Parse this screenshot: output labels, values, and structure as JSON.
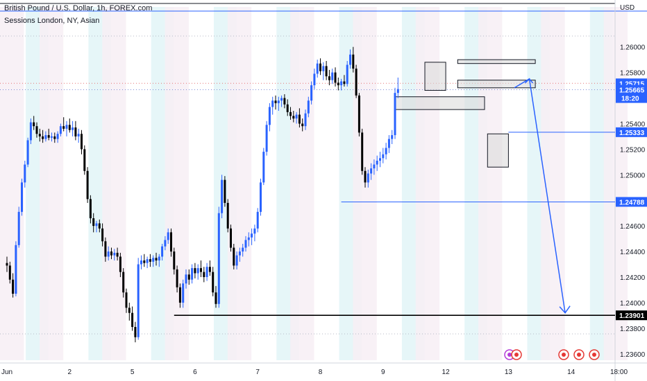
{
  "header": {
    "title": "British Pound / U.S. Dollar, 1h, FOREX.com",
    "indicator": "Sessions London, NY, Asian",
    "currency": "USD"
  },
  "chart_data": {
    "type": "candlestick",
    "symbol": "GBPUSD",
    "timeframe": "1h",
    "ylim": [
      1.2355,
      1.2615
    ],
    "y_ticks": [
      1.236,
      1.238,
      1.24,
      1.242,
      1.244,
      1.246,
      1.248,
      1.25,
      1.252,
      1.254,
      1.256,
      1.258,
      1.26
    ],
    "x_ticks": [
      {
        "label": "Jun",
        "idx": 0
      },
      {
        "label": "2",
        "idx": 21
      },
      {
        "label": "5",
        "idx": 42
      },
      {
        "label": "6",
        "idx": 63
      },
      {
        "label": "7",
        "idx": 84
      },
      {
        "label": "8",
        "idx": 105
      },
      {
        "label": "9",
        "idx": 126
      },
      {
        "label": "12",
        "idx": 147
      },
      {
        "label": "13",
        "idx": 168
      },
      {
        "label": "14",
        "idx": 189
      },
      {
        "label": "18:00",
        "idx": 205
      }
    ],
    "price_labels": [
      {
        "value": "1.25715",
        "price": 1.25715,
        "color": "#2962ff"
      },
      {
        "value": "1.25665",
        "price": 1.25665,
        "color": "#2962ff",
        "extra": "18:20"
      },
      {
        "value": "1.25333",
        "price": 1.25333,
        "color": "#2962ff"
      },
      {
        "value": "1.24788",
        "price": 1.24788,
        "color": "#2962ff"
      },
      {
        "value": "1.23901",
        "price": 1.23901,
        "color": "#000000"
      }
    ],
    "horizontal_lines": [
      {
        "price": 1.25333,
        "from_idx": 168,
        "color": "#2962ff"
      },
      {
        "price": 1.24788,
        "from_idx": 112,
        "color": "#2962ff"
      },
      {
        "price": 1.23901,
        "from_idx": 56,
        "color": "#000000"
      }
    ],
    "zones": [
      {
        "x0": 140,
        "x1": 147,
        "y0": 1.2588,
        "y1": 1.2566
      },
      {
        "x0": 130,
        "x1": 160,
        "y0": 1.2561,
        "y1": 1.2551
      },
      {
        "x0": 151,
        "x1": 177,
        "y0": 1.259,
        "y1": 1.2587
      },
      {
        "x0": 151,
        "x1": 177,
        "y0": 1.2574,
        "y1": 1.2568
      },
      {
        "x0": 161,
        "x1": 168,
        "y0": 1.2532,
        "y1": 1.2506
      }
    ],
    "projection_arrow": [
      {
        "idx": 170,
        "price": 1.2568
      },
      {
        "idx": 175,
        "price": 1.2575
      },
      {
        "idx": 187,
        "price": 1.2392
      }
    ],
    "colors": {
      "up": "#2962ff",
      "down": "#000000",
      "london": "#e6f6f8",
      "ny": "#f7eef5",
      "grid_dotted": "#b4b9c6",
      "red_dotted": "#e57373",
      "zone_fill": "#d8d8d8"
    },
    "candles": [
      [
        1.2431,
        1.2436,
        1.2424,
        1.2429
      ],
      [
        1.2429,
        1.2432,
        1.2415,
        1.2418
      ],
      [
        1.2418,
        1.2423,
        1.2404,
        1.2407
      ],
      [
        1.2407,
        1.2448,
        1.2405,
        1.2445
      ],
      [
        1.2445,
        1.2475,
        1.2443,
        1.2471
      ],
      [
        1.2471,
        1.2497,
        1.2468,
        1.2494
      ],
      [
        1.2494,
        1.2511,
        1.249,
        1.2508
      ],
      [
        1.2508,
        1.2529,
        1.2506,
        1.2527
      ],
      [
        1.2527,
        1.2544,
        1.2524,
        1.2541
      ],
      [
        1.2541,
        1.2546,
        1.2535,
        1.2538
      ],
      [
        1.2538,
        1.2541,
        1.2529,
        1.2532
      ],
      [
        1.2532,
        1.2536,
        1.2526,
        1.253
      ],
      [
        1.253,
        1.2535,
        1.2525,
        1.2528
      ],
      [
        1.2528,
        1.2534,
        1.2526,
        1.2531
      ],
      [
        1.2531,
        1.2536,
        1.2527,
        1.2529
      ],
      [
        1.2529,
        1.2533,
        1.2526,
        1.253
      ],
      [
        1.253,
        1.2533,
        1.2525,
        1.2528
      ],
      [
        1.2528,
        1.2534,
        1.2525,
        1.2532
      ],
      [
        1.2532,
        1.254,
        1.253,
        1.2538
      ],
      [
        1.2538,
        1.2545,
        1.2534,
        1.2536
      ],
      [
        1.2536,
        1.2542,
        1.253,
        1.2539
      ],
      [
        1.2539,
        1.2544,
        1.2533,
        1.2535
      ],
      [
        1.2535,
        1.2542,
        1.253,
        1.2537
      ],
      [
        1.2537,
        1.2542,
        1.2527,
        1.253
      ],
      [
        1.253,
        1.2536,
        1.2525,
        1.2532
      ],
      [
        1.2532,
        1.2535,
        1.2516,
        1.252
      ],
      [
        1.252,
        1.2523,
        1.25,
        1.2503
      ],
      [
        1.2503,
        1.2506,
        1.2478,
        1.2481
      ],
      [
        1.2481,
        1.2484,
        1.2462,
        1.2466
      ],
      [
        1.2466,
        1.247,
        1.2455,
        1.246
      ],
      [
        1.246,
        1.2464,
        1.2455,
        1.2462
      ],
      [
        1.2462,
        1.2465,
        1.2455,
        1.2458
      ],
      [
        1.2458,
        1.2462,
        1.2444,
        1.2448
      ],
      [
        1.2448,
        1.2451,
        1.2432,
        1.2436
      ],
      [
        1.2436,
        1.2444,
        1.2433,
        1.244
      ],
      [
        1.244,
        1.2443,
        1.2434,
        1.2437
      ],
      [
        1.2437,
        1.2442,
        1.2433,
        1.2439
      ],
      [
        1.2439,
        1.2443,
        1.2433,
        1.2436
      ],
      [
        1.2436,
        1.2439,
        1.242,
        1.2424
      ],
      [
        1.2424,
        1.2427,
        1.2404,
        1.2408
      ],
      [
        1.2408,
        1.2411,
        1.2392,
        1.2396
      ],
      [
        1.2396,
        1.24,
        1.2386,
        1.2392
      ],
      [
        1.2392,
        1.2397,
        1.2378,
        1.2381
      ],
      [
        1.2381,
        1.2385,
        1.2369,
        1.2373
      ],
      [
        1.2373,
        1.2435,
        1.2371,
        1.243
      ],
      [
        1.243,
        1.2437,
        1.2426,
        1.2433
      ],
      [
        1.2433,
        1.2438,
        1.2428,
        1.2431
      ],
      [
        1.2431,
        1.2436,
        1.2427,
        1.2434
      ],
      [
        1.2434,
        1.2438,
        1.2428,
        1.2432
      ],
      [
        1.2432,
        1.2437,
        1.2428,
        1.2435
      ],
      [
        1.2435,
        1.2439,
        1.2429,
        1.2433
      ],
      [
        1.2433,
        1.2438,
        1.2428,
        1.2436
      ],
      [
        1.2436,
        1.2446,
        1.2433,
        1.2444
      ],
      [
        1.2444,
        1.2452,
        1.2441,
        1.2449
      ],
      [
        1.2449,
        1.2458,
        1.2446,
        1.2455
      ],
      [
        1.2455,
        1.2458,
        1.2436,
        1.244
      ],
      [
        1.244,
        1.2443,
        1.2422,
        1.2426
      ],
      [
        1.2426,
        1.2429,
        1.2408,
        1.2412
      ],
      [
        1.2412,
        1.2415,
        1.2396,
        1.24
      ],
      [
        1.24,
        1.2418,
        1.2396,
        1.2415
      ],
      [
        1.2415,
        1.2426,
        1.2411,
        1.2422
      ],
      [
        1.2422,
        1.2426,
        1.2414,
        1.2418
      ],
      [
        1.2418,
        1.243,
        1.2415,
        1.2427
      ],
      [
        1.2427,
        1.2431,
        1.2419,
        1.2423
      ],
      [
        1.2423,
        1.243,
        1.2418,
        1.2427
      ],
      [
        1.2427,
        1.2433,
        1.242,
        1.2424
      ],
      [
        1.2424,
        1.2428,
        1.2416,
        1.242
      ],
      [
        1.242,
        1.2431,
        1.2417,
        1.2428
      ],
      [
        1.2428,
        1.2433,
        1.2421,
        1.2424
      ],
      [
        1.2424,
        1.2428,
        1.2405,
        1.2408
      ],
      [
        1.2408,
        1.2413,
        1.2396,
        1.2399
      ],
      [
        1.2399,
        1.2475,
        1.2396,
        1.247
      ],
      [
        1.247,
        1.25,
        1.2466,
        1.2496
      ],
      [
        1.2496,
        1.2499,
        1.2475,
        1.2478
      ],
      [
        1.2478,
        1.2481,
        1.2455,
        1.2458
      ],
      [
        1.2458,
        1.2461,
        1.244,
        1.2443
      ],
      [
        1.2443,
        1.2446,
        1.2426,
        1.2429
      ],
      [
        1.2429,
        1.244,
        1.2426,
        1.2437
      ],
      [
        1.2437,
        1.2443,
        1.2432,
        1.244
      ],
      [
        1.244,
        1.2446,
        1.2436,
        1.2443
      ],
      [
        1.2443,
        1.2452,
        1.244,
        1.2449
      ],
      [
        1.2449,
        1.2455,
        1.2444,
        1.2451
      ],
      [
        1.2451,
        1.2458,
        1.2445,
        1.2454
      ],
      [
        1.2454,
        1.2461,
        1.2448,
        1.2458
      ],
      [
        1.2458,
        1.2474,
        1.2455,
        1.2471
      ],
      [
        1.2471,
        1.2497,
        1.2468,
        1.2494
      ],
      [
        1.2494,
        1.2521,
        1.2492,
        1.2518
      ],
      [
        1.2518,
        1.2542,
        1.2515,
        1.2539
      ],
      [
        1.2539,
        1.2556,
        1.2534,
        1.2553
      ],
      [
        1.2553,
        1.2561,
        1.2547,
        1.2558
      ],
      [
        1.2558,
        1.2562,
        1.2551,
        1.2556
      ],
      [
        1.2556,
        1.2561,
        1.255,
        1.2558
      ],
      [
        1.2558,
        1.2562,
        1.2553,
        1.256
      ],
      [
        1.256,
        1.2563,
        1.2552,
        1.2555
      ],
      [
        1.2555,
        1.2559,
        1.2546,
        1.2549
      ],
      [
        1.2549,
        1.2553,
        1.2543,
        1.2546
      ],
      [
        1.2546,
        1.255,
        1.2541,
        1.2544
      ],
      [
        1.2544,
        1.2549,
        1.254,
        1.2547
      ],
      [
        1.2547,
        1.2552,
        1.2537,
        1.254
      ],
      [
        1.254,
        1.2544,
        1.2534,
        1.2538
      ],
      [
        1.2538,
        1.2551,
        1.2535,
        1.2548
      ],
      [
        1.2548,
        1.2561,
        1.2545,
        1.2558
      ],
      [
        1.2558,
        1.2573,
        1.2555,
        1.257
      ],
      [
        1.257,
        1.2583,
        1.2567,
        1.2579
      ],
      [
        1.2579,
        1.259,
        1.2576,
        1.2587
      ],
      [
        1.2587,
        1.2591,
        1.2578,
        1.2581
      ],
      [
        1.2581,
        1.2588,
        1.2574,
        1.2585
      ],
      [
        1.2585,
        1.2589,
        1.2574,
        1.2577
      ],
      [
        1.2577,
        1.2582,
        1.257,
        1.2574
      ],
      [
        1.2574,
        1.2583,
        1.2571,
        1.258
      ],
      [
        1.258,
        1.2584,
        1.2569,
        1.2572
      ],
      [
        1.2572,
        1.2576,
        1.2566,
        1.257
      ],
      [
        1.257,
        1.2575,
        1.2566,
        1.2573
      ],
      [
        1.2573,
        1.2578,
        1.2569,
        1.2571
      ],
      [
        1.2571,
        1.2589,
        1.2569,
        1.2586
      ],
      [
        1.2586,
        1.2598,
        1.2583,
        1.2594
      ],
      [
        1.2594,
        1.26,
        1.258,
        1.2583
      ],
      [
        1.2583,
        1.2586,
        1.256,
        1.2562
      ],
      [
        1.2562,
        1.2564,
        1.253,
        1.2533
      ],
      [
        1.2533,
        1.2536,
        1.25,
        1.2503
      ],
      [
        1.2503,
        1.2506,
        1.249,
        1.2494
      ],
      [
        1.2494,
        1.2504,
        1.249,
        1.2501
      ],
      [
        1.2501,
        1.2509,
        1.2496,
        1.2505
      ],
      [
        1.2505,
        1.2512,
        1.25,
        1.2508
      ],
      [
        1.2508,
        1.2515,
        1.2503,
        1.2511
      ],
      [
        1.2511,
        1.2518,
        1.2506,
        1.2513
      ],
      [
        1.2513,
        1.2521,
        1.2509,
        1.2516
      ],
      [
        1.2516,
        1.2525,
        1.2512,
        1.2521
      ],
      [
        1.2521,
        1.2531,
        1.2517,
        1.2528
      ],
      [
        1.2528,
        1.2535,
        1.2524,
        1.2531
      ],
      [
        1.2531,
        1.2568,
        1.2528,
        1.2564
      ],
      [
        1.2564,
        1.2576,
        1.256,
        1.2567
      ]
    ]
  }
}
